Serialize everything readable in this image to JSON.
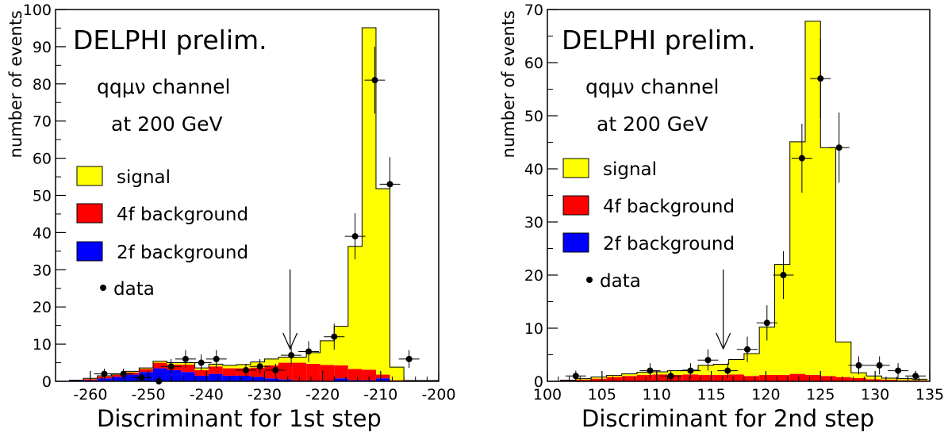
{
  "chart_data": [
    {
      "type": "bar",
      "title": "DELPHI prelim.",
      "annotation_lines": [
        "qqμν channel",
        "at 200 GeV"
      ],
      "xlabel": "Discriminant for 1st step",
      "ylabel": "number of events",
      "xlim": [
        -266,
        -200
      ],
      "ylim": [
        0,
        100
      ],
      "x_ticks": [
        -260,
        -250,
        -240,
        -230,
        -220,
        -210,
        -200
      ],
      "y_ticks": [
        0,
        10,
        20,
        30,
        40,
        50,
        60,
        70,
        80,
        90,
        100
      ],
      "bin_edges": [
        -266,
        -263.6,
        -261.2,
        -258.8,
        -256.4,
        -254,
        -251.6,
        -249.2,
        -246.8,
        -244.4,
        -242,
        -239.6,
        -237.2,
        -234.8,
        -232.4,
        -230,
        -227.6,
        -225.2,
        -222.8,
        -220.4,
        -218,
        -215.6,
        -213.2,
        -210.8,
        -208.4,
        -206,
        -203.6,
        -200
      ],
      "stack": {
        "bkg_2f": [
          0,
          0.2,
          0.3,
          0.8,
          1.2,
          1.8,
          2.5,
          3.5,
          3.0,
          2.5,
          1.5,
          2.0,
          1.5,
          1.5,
          1.2,
          0.8,
          0.5,
          0.2,
          0.2,
          0.2,
          0.8,
          0.3,
          0.3,
          0.8,
          0,
          0,
          0
        ],
        "bkg_4f": [
          0,
          0.1,
          0.3,
          0.5,
          0.5,
          0.6,
          0.8,
          1.5,
          1.5,
          2.0,
          1.5,
          2.0,
          2.0,
          2.0,
          2.5,
          3.5,
          4.5,
          4.8,
          4.5,
          4.2,
          3.5,
          3.0,
          2.8,
          1.0,
          0.3,
          0.2,
          0.2
        ],
        "signal": [
          0,
          0,
          0.2,
          0.2,
          0.2,
          0.3,
          0.3,
          0.4,
          0.5,
          0.5,
          0.6,
          0.6,
          0.8,
          1.0,
          1.5,
          1.7,
          1.5,
          1.5,
          3.0,
          6.5,
          10.5,
          33,
          92,
          50,
          3.5,
          0,
          0
        ]
      },
      "data_points": [
        {
          "x": -257.6,
          "y": 2,
          "err": 1.4
        },
        {
          "x": -254.3,
          "y": 2,
          "err": 1.4
        },
        {
          "x": -251.2,
          "y": 1,
          "err": 1.0
        },
        {
          "x": -248.2,
          "y": 0,
          "err": 0
        },
        {
          "x": -246.1,
          "y": 4,
          "err": 2.0
        },
        {
          "x": -243.6,
          "y": 6,
          "err": 2.4
        },
        {
          "x": -240.9,
          "y": 5,
          "err": 2.2
        },
        {
          "x": -238.3,
          "y": 6,
          "err": 2.4
        },
        {
          "x": -233.2,
          "y": 3,
          "err": 1.7
        },
        {
          "x": -230.8,
          "y": 4,
          "err": 2.0
        },
        {
          "x": -228.1,
          "y": 3,
          "err": 1.7
        },
        {
          "x": -225.4,
          "y": 7,
          "err": 2.6
        },
        {
          "x": -222.4,
          "y": 8,
          "err": 2.8
        },
        {
          "x": -218.0,
          "y": 12,
          "err": 3.5
        },
        {
          "x": -214.4,
          "y": 39,
          "err": 6.2
        },
        {
          "x": -211.0,
          "y": 81,
          "err": 9.0
        },
        {
          "x": -208.4,
          "y": 53,
          "err": 7.3
        },
        {
          "x": -205.1,
          "y": 6,
          "err": 2.4
        }
      ],
      "cut_arrow_x": -225.6,
      "legend": [
        "signal",
        "4f background",
        "2f background",
        "data"
      ],
      "legend_position": "middle-left"
    },
    {
      "type": "bar",
      "title": "DELPHI prelim.",
      "annotation_lines": [
        "qqμν channel",
        "at 200 GeV"
      ],
      "xlabel": "Discriminant for 2nd step",
      "ylabel": "number of events",
      "xlim": [
        100,
        135
      ],
      "ylim": [
        0,
        70
      ],
      "x_ticks": [
        100,
        105,
        110,
        115,
        120,
        125,
        130,
        135
      ],
      "y_ticks": [
        0,
        10,
        20,
        30,
        40,
        50,
        60,
        70
      ],
      "bin_edges": [
        101.2,
        102.6,
        104,
        105.4,
        106.8,
        108.2,
        109.6,
        111,
        112.4,
        113.8,
        115.2,
        116.6,
        118,
        119.4,
        120.8,
        122.2,
        123.6,
        125,
        126.4,
        127.8,
        129.2,
        130.6,
        132,
        133.4,
        134.8
      ],
      "stack": {
        "bkg_2f": [
          0,
          0,
          0,
          0,
          0,
          0,
          0,
          0,
          0,
          0,
          0,
          0,
          0,
          0,
          0,
          0,
          0,
          0,
          0,
          0,
          0,
          0,
          0,
          0
        ],
        "bkg_4f": [
          0.2,
          0.3,
          0.5,
          0.8,
          1.0,
          1.2,
          1.3,
          1.2,
          1.3,
          1.2,
          1.2,
          1.3,
          1.0,
          1.2,
          1.2,
          1.4,
          1.2,
          1.0,
          0.8,
          0.6,
          0.4,
          0.3,
          0.2,
          0.2
        ],
        "signal": [
          0,
          0.2,
          0.3,
          0.3,
          0.4,
          0.5,
          0.5,
          0.8,
          0.8,
          1.8,
          2.0,
          2.8,
          4.2,
          9.0,
          20.8,
          43.7,
          66.6,
          43.0,
          6.6,
          1.0,
          0.6,
          0.3,
          0.3,
          0.2
        ]
      },
      "data_points": [
        {
          "x": 102.6,
          "y": 1,
          "err": 1.0
        },
        {
          "x": 109.4,
          "y": 2,
          "err": 1.4
        },
        {
          "x": 111.3,
          "y": 1,
          "err": 1.0
        },
        {
          "x": 113.1,
          "y": 2,
          "err": 1.4
        },
        {
          "x": 114.7,
          "y": 4,
          "err": 2.0
        },
        {
          "x": 116.5,
          "y": 2,
          "err": 1.4
        },
        {
          "x": 118.3,
          "y": 6,
          "err": 2.4
        },
        {
          "x": 120.1,
          "y": 11,
          "err": 3.3
        },
        {
          "x": 121.6,
          "y": 20,
          "err": 4.5
        },
        {
          "x": 123.3,
          "y": 42,
          "err": 6.5
        },
        {
          "x": 125.0,
          "y": 57,
          "err": 7.5
        },
        {
          "x": 126.7,
          "y": 44,
          "err": 6.6
        },
        {
          "x": 128.5,
          "y": 3,
          "err": 1.7
        },
        {
          "x": 130.4,
          "y": 3,
          "err": 1.7
        },
        {
          "x": 132.1,
          "y": 2,
          "err": 1.4
        },
        {
          "x": 133.7,
          "y": 1,
          "err": 1.0
        }
      ],
      "cut_arrow_x": 116.1,
      "legend": [
        "signal",
        "4f background",
        "2f background",
        "data"
      ],
      "legend_position": "middle-left"
    }
  ],
  "colors": {
    "signal": "#ffff00",
    "bkg_4f": "#ff0000",
    "bkg_2f": "#0000ff",
    "data": "#000000"
  }
}
